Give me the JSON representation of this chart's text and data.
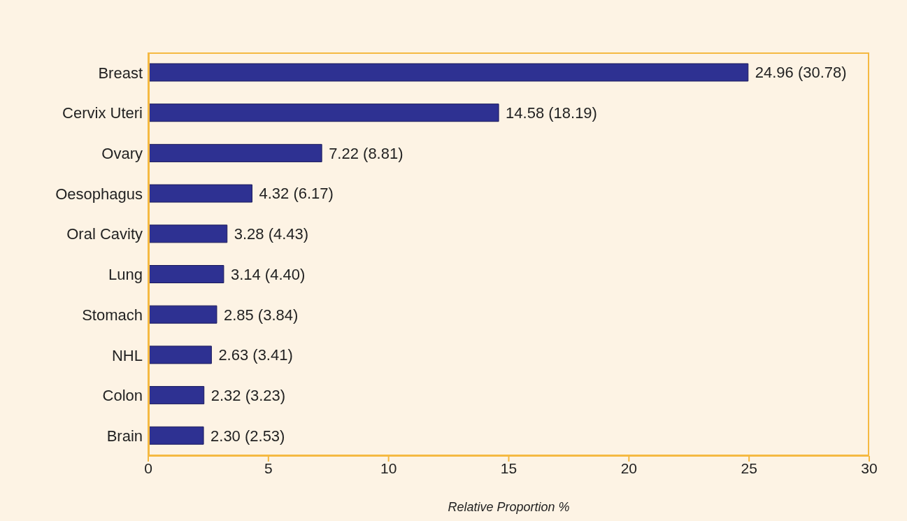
{
  "chart_data": {
    "type": "bar",
    "orientation": "horizontal",
    "xlabel": "Relative Proportion %",
    "categories": [
      "Breast",
      "Cervix Uteri",
      "Ovary",
      "Oesophagus",
      "Oral Cavity",
      "Lung",
      "Stomach",
      "NHL",
      "Colon",
      "Brain"
    ],
    "values": [
      24.96,
      14.58,
      7.22,
      4.32,
      3.28,
      3.14,
      2.85,
      2.63,
      2.32,
      2.3
    ],
    "value_labels": [
      "24.96 (30.78)",
      "14.58 (18.19)",
      "7.22 (8.81)",
      "4.32 (6.17)",
      "3.28 (4.43)",
      "3.14 (4.40)",
      "2.85 (3.84)",
      "2.63 (3.41)",
      "2.32 (3.23)",
      "2.30 (2.53)"
    ],
    "color": "#2e3192",
    "xlim": [
      0,
      30
    ],
    "xticks": [
      0,
      5,
      10,
      15,
      20,
      25,
      30
    ]
  }
}
